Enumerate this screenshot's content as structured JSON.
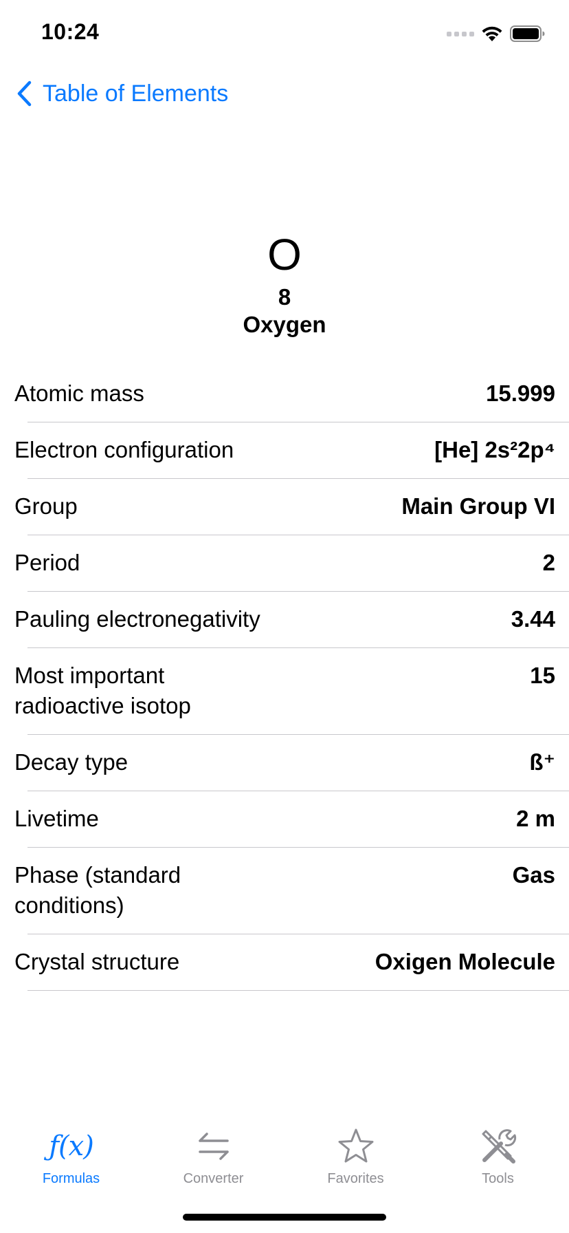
{
  "status_bar": {
    "time": "10:24"
  },
  "nav": {
    "back_label": "Table of Elements",
    "back_icon": "chevron-left-icon"
  },
  "element": {
    "symbol": "O",
    "number": "8",
    "name": "Oxygen"
  },
  "properties": [
    {
      "label": "Atomic mass",
      "value": "15.999"
    },
    {
      "label": "Electron configuration",
      "value": "[He] 2s²2p⁴"
    },
    {
      "label": "Group",
      "value": "Main Group VI"
    },
    {
      "label": "Period",
      "value": "2"
    },
    {
      "label": "Pauling electronegativity",
      "value": "3.44"
    },
    {
      "label": "Most important radioactive isotop",
      "value": "15"
    },
    {
      "label": "Decay type",
      "value": "ß⁺"
    },
    {
      "label": "Livetime",
      "value": "2 m"
    },
    {
      "label": "Phase (standard conditions)",
      "value": "Gas"
    },
    {
      "label": "Crystal structure",
      "value": "Oxigen Molecule"
    }
  ],
  "tabs": [
    {
      "label": "Formulas",
      "icon": "function-fx-icon",
      "active": true
    },
    {
      "label": "Converter",
      "icon": "arrows-swap-icon",
      "active": false
    },
    {
      "label": "Favorites",
      "icon": "star-icon",
      "active": false
    },
    {
      "label": "Tools",
      "icon": "tools-icon",
      "active": false
    }
  ],
  "colors": {
    "accent": "#0a7aff",
    "inactive": "#8e8e93",
    "separator": "#c8c7cc"
  }
}
